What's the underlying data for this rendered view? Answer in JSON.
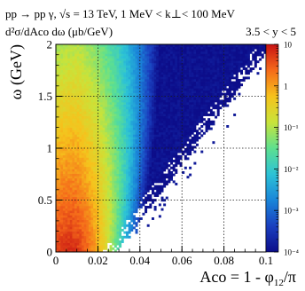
{
  "chart_data": {
    "type": "heatmap",
    "header_line1": "pp → pp γ,  √s = 13 TeV,  1 MeV < k⊥< 100 MeV",
    "header_line2_left": "d²σ/dAco dω (μb/GeV)",
    "header_line2_right": "3.5 < y < 5",
    "xlabel": "Aco = 1 - φ12/π",
    "ylabel": "ω (GeV)",
    "xlim": [
      0,
      0.1
    ],
    "ylim": [
      0,
      2
    ],
    "x_ticks": [
      {
        "value": 0,
        "label": "0"
      },
      {
        "value": 0.02,
        "label": "0.02"
      },
      {
        "value": 0.04,
        "label": "0.04"
      },
      {
        "value": 0.06,
        "label": "0.06"
      },
      {
        "value": 0.08,
        "label": "0.08"
      },
      {
        "value": 0.1,
        "label": "0.1"
      }
    ],
    "y_ticks": [
      {
        "value": 0,
        "label": "0"
      },
      {
        "value": 0.5,
        "label": "0.5"
      },
      {
        "value": 1,
        "label": "1"
      },
      {
        "value": 1.5,
        "label": "1.5"
      },
      {
        "value": 2,
        "label": "2"
      }
    ],
    "grid": true,
    "colorbar": {
      "scale": "log",
      "range": [
        0.0001,
        10
      ],
      "ticks": [
        {
          "value": 10,
          "label": "10"
        },
        {
          "value": 1,
          "label": "1"
        },
        {
          "value": 0.1,
          "label": "10⁻¹"
        },
        {
          "value": 0.01,
          "label": "10⁻²"
        },
        {
          "value": 0.001,
          "label": "10⁻³"
        },
        {
          "value": 0.0001,
          "label": "10⁻⁴"
        }
      ]
    },
    "density_model": {
      "description_of_values": "approximate log10 of cross-section per cell",
      "band_center_aco_at_omega0": 0.006,
      "band_center_slope_aco_per_gev": 0.0015,
      "band_width_aco": 0.012,
      "peak_log10_value": 0.8,
      "falloff_log10_per_gev": 0.9,
      "edge_aco_at_omega0": 0.025,
      "edge_slope_aco_per_gev": 0.037
    },
    "colors": {
      "stops": [
        "#0c0d8a",
        "#1a3fbf",
        "#1a86d9",
        "#2cc2d6",
        "#5ee08f",
        "#c9e33a",
        "#f6c21c",
        "#f56a1a",
        "#c81313"
      ],
      "grid": "#1a1a1a",
      "axis": "#000000"
    }
  }
}
